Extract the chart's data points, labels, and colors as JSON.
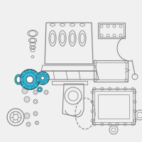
{
  "background_color": "#f0f0f0",
  "highlight_color": "#3ab8d8",
  "highlight_dark": "#2090aa",
  "line_color": "#888888",
  "dark_color": "#555555",
  "light_gray": "#aaaaaa",
  "white": "#ffffff",
  "fig_size": [
    2.0,
    2.0
  ],
  "dpi": 100
}
